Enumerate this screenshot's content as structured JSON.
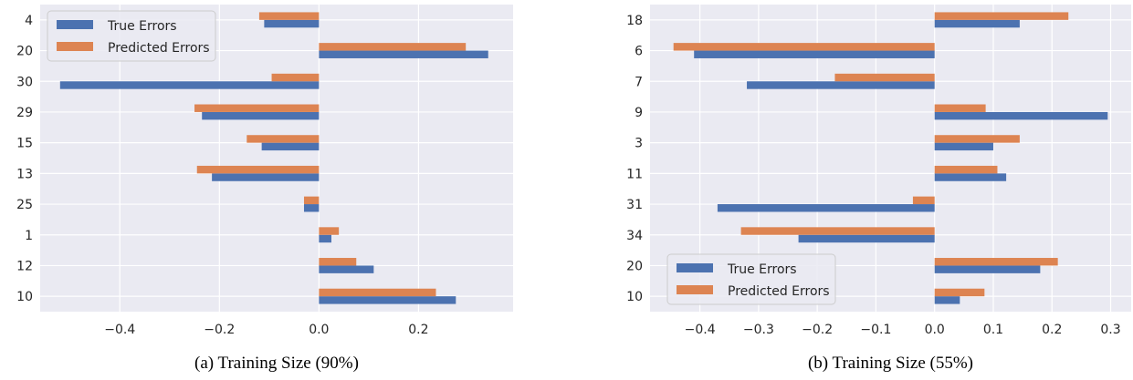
{
  "colors": {
    "true_errors": "#4c72b0",
    "predicted_errors": "#dd8452",
    "plot_bg": "#eaeaf2",
    "grid": "#ffffff"
  },
  "chart_data": [
    {
      "type": "bar",
      "orientation": "horizontal",
      "caption": "(a) Training Size (90%)",
      "categories": [
        "4",
        "20",
        "30",
        "29",
        "15",
        "13",
        "25",
        "1",
        "12",
        "10"
      ],
      "series": [
        {
          "name": "True Errors",
          "values": [
            -0.11,
            0.34,
            -0.52,
            -0.235,
            -0.115,
            -0.215,
            -0.03,
            0.025,
            0.11,
            0.275
          ]
        },
        {
          "name": "Predicted Errors",
          "values": [
            -0.12,
            0.295,
            -0.095,
            -0.25,
            -0.145,
            -0.245,
            -0.03,
            0.04,
            0.075,
            0.235
          ]
        }
      ],
      "xlim": [
        -0.56,
        0.39
      ],
      "xticks": [
        -0.4,
        -0.2,
        0.0,
        0.2
      ],
      "xtick_labels": [
        "−0.4",
        "−0.2",
        "0.0",
        "0.2"
      ],
      "legend": "top-left",
      "grid": true
    },
    {
      "type": "bar",
      "orientation": "horizontal",
      "caption": "(b) Training Size (55%)",
      "categories": [
        "18",
        "6",
        "7",
        "9",
        "3",
        "11",
        "31",
        "34",
        "20",
        "10"
      ],
      "series": [
        {
          "name": "True Errors",
          "values": [
            0.145,
            -0.41,
            -0.32,
            0.295,
            0.1,
            0.122,
            -0.37,
            -0.232,
            0.18,
            0.043
          ]
        },
        {
          "name": "Predicted Errors",
          "values": [
            0.228,
            -0.445,
            -0.17,
            0.087,
            0.145,
            0.107,
            -0.037,
            -0.33,
            0.21,
            0.085
          ]
        }
      ],
      "xlim": [
        -0.485,
        0.335
      ],
      "xticks": [
        -0.4,
        -0.3,
        -0.2,
        -0.1,
        0.0,
        0.1,
        0.2,
        0.3
      ],
      "xtick_labels": [
        "−0.4",
        "−0.3",
        "−0.2",
        "−0.1",
        "0.0",
        "0.1",
        "0.2",
        "0.3"
      ],
      "legend": "bottom-left",
      "grid": true
    }
  ]
}
